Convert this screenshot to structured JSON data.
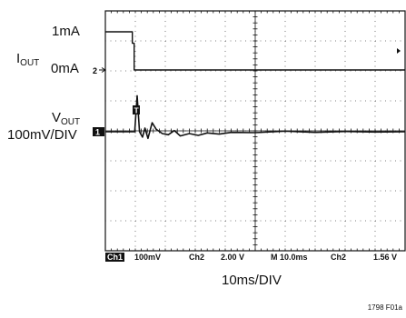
{
  "labels": {
    "iout_main": "I",
    "iout_sub": "OUT",
    "iout_high": "1mA",
    "iout_zero": "0mA",
    "vout_main": "V",
    "vout_sub": "OUT",
    "vout_scale": "100mV/DIV",
    "ch2_marker": "2",
    "ch1_marker": "1",
    "trigger_marker": "T"
  },
  "status_bar": {
    "ch1": "Ch1",
    "ch1_scale": "100mV",
    "ch2": "Ch2",
    "ch2_scale": "2.00 V",
    "timebase": "M 10.0ms",
    "trigger_source": "Ch2",
    "trigger_level": "1.56 V"
  },
  "xlabel": "10ms/DIV",
  "figure_id": "1798 F01a",
  "chart_data": {
    "type": "line",
    "title": "",
    "xlabel": "10ms/DIV",
    "ylabel": "",
    "grid": true,
    "x_divisions": 10,
    "y_divisions": 8,
    "x_units": "ms",
    "xlim": [
      0,
      100
    ],
    "series": [
      {
        "name": "",
        "channel": "Ch2",
        "x": [
          0,
          9.0,
          9.0,
          9.6,
          9.6,
          100
        ],
        "y": [
          1,
          1,
          0.7,
          0.7,
          0,
          0
        ]
      },
      {
        "name": "",
        "channel": "Ch1",
        "x": [
          0,
          5,
          8,
          9.8,
          10.6,
          11.4,
          12.4,
          13.2,
          14.2,
          15.6,
          17,
          19,
          21,
          23,
          25,
          28,
          31,
          34,
          38,
          42,
          50,
          60,
          70,
          80,
          90,
          100
        ],
        "y": [
          0,
          0,
          0,
          0,
          120,
          0,
          -18,
          12,
          -22,
          30,
          8,
          -6,
          -10,
          4,
          -14,
          -6,
          -12,
          -4,
          -8,
          -2,
          -3,
          2,
          -2,
          1,
          -1,
          0
        ]
      }
    ]
  }
}
